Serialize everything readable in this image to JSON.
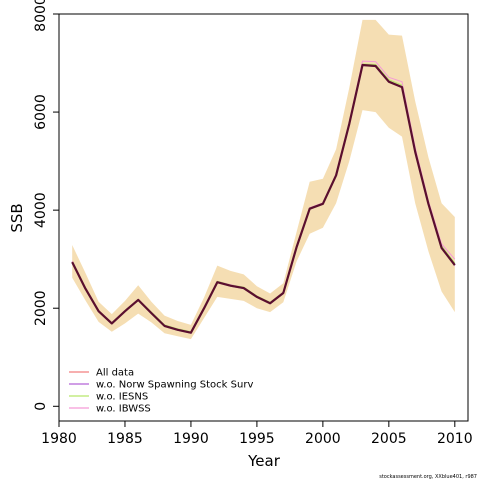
{
  "chart_data": {
    "type": "line",
    "xlabel": "Year",
    "ylabel": "SSB",
    "xlim": [
      1980,
      2011
    ],
    "ylim": [
      -300,
      8000
    ],
    "x_ticks": [
      "1980",
      "1985",
      "1990",
      "1995",
      "2000",
      "2005",
      "2010"
    ],
    "y_ticks": [
      "0",
      "2000",
      "4000",
      "6000",
      "8000"
    ],
    "grid": false,
    "legend_position": "bottom-left",
    "x": [
      1981,
      1982,
      1983,
      1984,
      1985,
      1986,
      1987,
      1988,
      1989,
      1990,
      1991,
      1992,
      1993,
      1994,
      1995,
      1996,
      1997,
      1998,
      1999,
      2000,
      2001,
      2002,
      2003,
      2004,
      2005,
      2006,
      2007,
      2008,
      2009,
      2010
    ],
    "confidence_band": {
      "color": "#f5deb3",
      "lower": [
        2620,
        2160,
        1720,
        1520,
        1690,
        1890,
        1710,
        1490,
        1430,
        1370,
        1800,
        2230,
        2190,
        2150,
        2000,
        1920,
        2120,
        2950,
        3520,
        3640,
        4140,
        5000,
        6040,
        6000,
        5680,
        5500,
        4140,
        3160,
        2340,
        1920
      ],
      "upper": [
        3290,
        2720,
        2130,
        1880,
        2150,
        2470,
        2130,
        1850,
        1740,
        1660,
        2220,
        2870,
        2760,
        2690,
        2450,
        2300,
        2510,
        3550,
        4580,
        4640,
        5240,
        6500,
        7880,
        7880,
        7580,
        7560,
        6220,
        5080,
        4140,
        3860
      ]
    },
    "series": [
      {
        "name": "All data",
        "color": "#f27f7f",
        "width": 1,
        "values": [
          2940,
          2400,
          1940,
          1690,
          1940,
          2170,
          1900,
          1640,
          1560,
          1500,
          2000,
          2530,
          2460,
          2410,
          2230,
          2100,
          2310,
          3240,
          4030,
          4130,
          4710,
          5760,
          6960,
          6940,
          6620,
          6510,
          5190,
          4130,
          3230,
          2880
        ]
      },
      {
        "name": "w.o. Norw Spawning Stock Surv",
        "color": "#b565d6",
        "width": 1,
        "values": [
          2940,
          2390,
          1930,
          1680,
          1930,
          2160,
          1890,
          1630,
          1550,
          1490,
          1990,
          2520,
          2450,
          2400,
          2220,
          2090,
          2300,
          3230,
          4020,
          4120,
          4700,
          5750,
          6950,
          6930,
          6610,
          6500,
          5180,
          4120,
          3220,
          2870
        ]
      },
      {
        "name": "w.o. IESNS",
        "color": "#b6e66b",
        "width": 1,
        "values": [
          2960,
          2420,
          1950,
          1700,
          1950,
          2180,
          1920,
          1660,
          1580,
          1520,
          2020,
          2550,
          2480,
          2430,
          2250,
          2120,
          2330,
          3260,
          4040,
          4140,
          4720,
          5770,
          6980,
          6970,
          6660,
          6550,
          5230,
          4170,
          3270,
          2920
        ]
      },
      {
        "name": "w.o. IBWSS",
        "color": "#f59ad6",
        "width": 1,
        "values": [
          2960,
          2410,
          1950,
          1700,
          1950,
          2180,
          1910,
          1650,
          1570,
          1510,
          2010,
          2540,
          2480,
          2420,
          2240,
          2110,
          2330,
          3250,
          4050,
          4150,
          4730,
          5790,
          7040,
          7030,
          6710,
          6620,
          5280,
          4190,
          3310,
          3000
        ]
      },
      {
        "name": "",
        "color": "#5a0f2e",
        "width": 2.2,
        "values": [
          2940,
          2400,
          1940,
          1690,
          1940,
          2170,
          1900,
          1640,
          1560,
          1500,
          2000,
          2530,
          2460,
          2410,
          2230,
          2100,
          2310,
          3240,
          4030,
          4130,
          4710,
          5760,
          6960,
          6940,
          6620,
          6510,
          5190,
          4130,
          3230,
          2880
        ]
      }
    ],
    "legend": [
      "All data",
      "w.o. Norw Spawning Stock Surv",
      "w.o. IESNS",
      "w.o. IBWSS"
    ],
    "credit": "stockassessment.org, XXblue401, r987"
  }
}
